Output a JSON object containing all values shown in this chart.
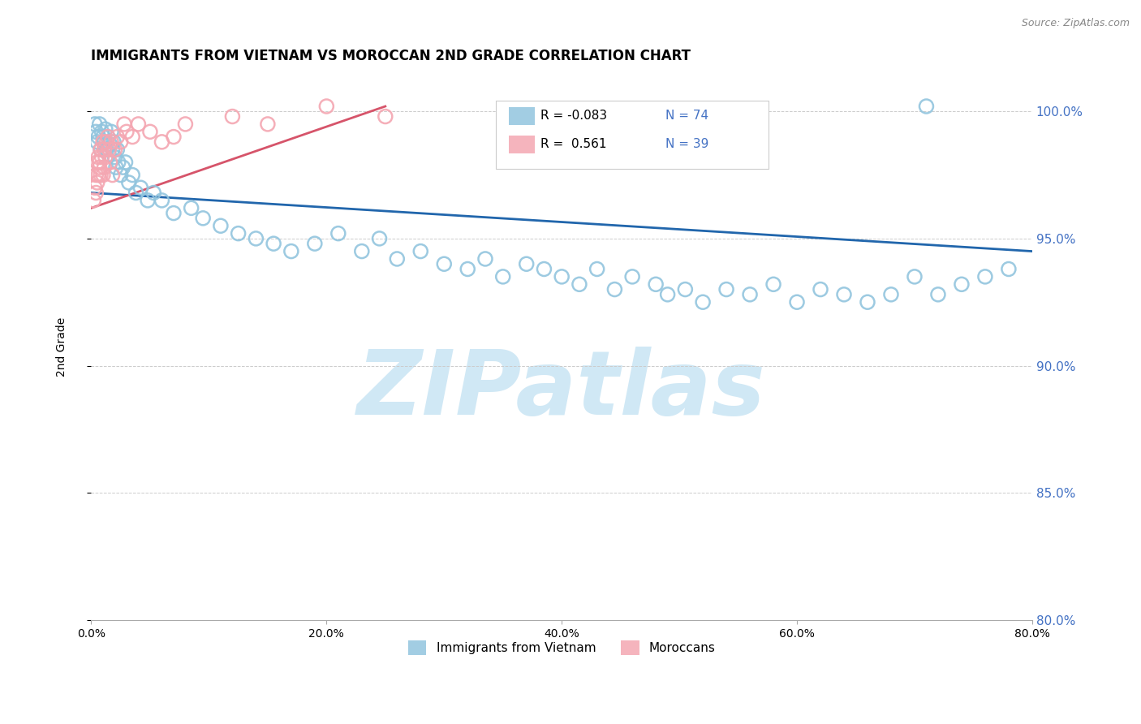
{
  "title": "IMMIGRANTS FROM VIETNAM VS MOROCCAN 2ND GRADE CORRELATION CHART",
  "source": "Source: ZipAtlas.com",
  "ylabel": "2nd Grade",
  "legend_blue_r": "R = -0.083",
  "legend_blue_n": "N = 74",
  "legend_pink_r": "R =  0.561",
  "legend_pink_n": "N = 39",
  "legend_label_blue": "Immigrants from Vietnam",
  "legend_label_pink": "Moroccans",
  "blue_color": "#92c5de",
  "pink_color": "#f4a7b2",
  "trend_blue_color": "#2166ac",
  "trend_pink_color": "#d6546a",
  "xmin": 0.0,
  "xmax": 80.0,
  "ymin": 80.0,
  "ymax": 101.5,
  "yticks": [
    80.0,
    85.0,
    90.0,
    95.0,
    100.0
  ],
  "xticks": [
    0.0,
    20.0,
    40.0,
    60.0,
    80.0
  ],
  "blue_x": [
    0.3,
    0.4,
    0.5,
    0.6,
    0.7,
    0.8,
    0.9,
    1.0,
    1.1,
    1.2,
    1.3,
    1.4,
    1.5,
    1.6,
    1.7,
    1.8,
    1.9,
    2.0,
    2.1,
    2.2,
    2.3,
    2.5,
    2.7,
    2.9,
    3.2,
    3.5,
    3.8,
    4.2,
    4.8,
    5.3,
    6.0,
    7.0,
    8.5,
    9.5,
    11.0,
    12.5,
    14.0,
    15.5,
    17.0,
    19.0,
    21.0,
    23.0,
    24.5,
    26.0,
    28.0,
    30.0,
    32.0,
    33.5,
    35.0,
    37.0,
    38.5,
    40.0,
    41.5,
    43.0,
    44.5,
    46.0,
    48.0,
    49.0,
    50.5,
    52.0,
    54.0,
    56.0,
    58.0,
    60.0,
    62.0,
    64.0,
    66.0,
    68.0,
    70.0,
    72.0,
    74.0,
    76.0,
    78.0,
    71.0
  ],
  "blue_y": [
    99.5,
    99.2,
    98.8,
    99.0,
    99.5,
    98.5,
    99.2,
    99.0,
    98.8,
    99.3,
    98.5,
    99.0,
    98.3,
    98.7,
    99.2,
    98.5,
    98.8,
    98.2,
    97.8,
    98.5,
    98.0,
    97.5,
    97.8,
    98.0,
    97.2,
    97.5,
    96.8,
    97.0,
    96.5,
    96.8,
    96.5,
    96.0,
    96.2,
    95.8,
    95.5,
    95.2,
    95.0,
    94.8,
    94.5,
    94.8,
    95.2,
    94.5,
    95.0,
    94.2,
    94.5,
    94.0,
    93.8,
    94.2,
    93.5,
    94.0,
    93.8,
    93.5,
    93.2,
    93.8,
    93.0,
    93.5,
    93.2,
    92.8,
    93.0,
    92.5,
    93.0,
    92.8,
    93.2,
    92.5,
    93.0,
    92.8,
    92.5,
    92.8,
    93.5,
    92.8,
    93.2,
    93.5,
    93.8,
    100.2
  ],
  "pink_x": [
    0.2,
    0.3,
    0.4,
    0.4,
    0.5,
    0.5,
    0.6,
    0.6,
    0.7,
    0.7,
    0.8,
    0.8,
    0.9,
    1.0,
    1.0,
    1.1,
    1.1,
    1.2,
    1.3,
    1.4,
    1.5,
    1.6,
    1.7,
    1.8,
    2.0,
    2.2,
    2.5,
    2.8,
    3.0,
    3.5,
    4.0,
    5.0,
    6.0,
    7.0,
    8.0,
    12.0,
    15.0,
    20.0,
    25.0
  ],
  "pink_y": [
    96.5,
    97.0,
    97.5,
    96.8,
    97.2,
    98.0,
    97.5,
    98.2,
    98.0,
    97.8,
    98.5,
    97.5,
    98.2,
    98.8,
    97.5,
    98.5,
    97.8,
    98.2,
    98.8,
    99.0,
    98.5,
    98.0,
    98.8,
    97.5,
    98.5,
    99.0,
    98.8,
    99.5,
    99.2,
    99.0,
    99.5,
    99.2,
    98.8,
    99.0,
    99.5,
    99.8,
    99.5,
    100.2,
    99.8
  ],
  "trend_blue_x0": 0.0,
  "trend_blue_x1": 80.0,
  "trend_blue_y0": 96.8,
  "trend_blue_y1": 94.5,
  "trend_pink_x0": 0.0,
  "trend_pink_x1": 25.0,
  "trend_pink_y0": 96.2,
  "trend_pink_y1": 100.2,
  "watermark": "ZIPatlas",
  "watermark_color": "#d0e8f5",
  "background_color": "#ffffff",
  "grid_color": "#cccccc",
  "right_axis_color": "#4472c4",
  "title_fontsize": 12,
  "axis_label_fontsize": 10
}
